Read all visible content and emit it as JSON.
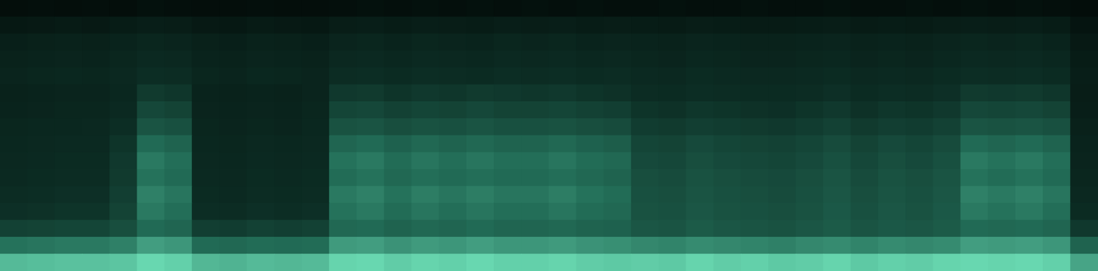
{
  "chart_data": {
    "type": "heatmap",
    "tick_labels": false,
    "zlim": [
      0,
      100
    ],
    "cells": [
      [
        5,
        6,
        5,
        6,
        5,
        7,
        6,
        5,
        5,
        6,
        5,
        5,
        6,
        7,
        6,
        7,
        6,
        7,
        6,
        7,
        6,
        7,
        6,
        6,
        7,
        6,
        6,
        7,
        6,
        6,
        7,
        6,
        6,
        7,
        6,
        7,
        6,
        7,
        6,
        4
      ],
      [
        13,
        14,
        15,
        14,
        16,
        18,
        17,
        14,
        13,
        15,
        14,
        13,
        17,
        18,
        16,
        18,
        17,
        16,
        18,
        17,
        18,
        16,
        17,
        16,
        15,
        17,
        16,
        15,
        15,
        16,
        17,
        15,
        16,
        15,
        17,
        18,
        17,
        18,
        16,
        10
      ],
      [
        19,
        20,
        21,
        20,
        22,
        24,
        23,
        20,
        19,
        21,
        20,
        19,
        23,
        24,
        22,
        24,
        23,
        22,
        24,
        23,
        24,
        22,
        23,
        22,
        21,
        23,
        22,
        21,
        21,
        22,
        23,
        21,
        22,
        21,
        23,
        24,
        23,
        24,
        22,
        14
      ],
      [
        21,
        22,
        23,
        22,
        24,
        27,
        26,
        22,
        21,
        23,
        22,
        21,
        26,
        27,
        25,
        27,
        26,
        25,
        27,
        26,
        27,
        25,
        26,
        24,
        23,
        25,
        24,
        23,
        23,
        24,
        25,
        23,
        24,
        23,
        25,
        27,
        26,
        27,
        25,
        16
      ],
      [
        23,
        24,
        25,
        24,
        26,
        30,
        29,
        24,
        23,
        25,
        24,
        23,
        29,
        30,
        28,
        30,
        29,
        28,
        30,
        29,
        30,
        28,
        29,
        27,
        26,
        28,
        27,
        26,
        26,
        27,
        28,
        26,
        27,
        26,
        28,
        30,
        29,
        30,
        28,
        18
      ],
      [
        21,
        22,
        23,
        23,
        25,
        36,
        34,
        22,
        21,
        22,
        21,
        23,
        35,
        36,
        33,
        35,
        34,
        36,
        35,
        34,
        35,
        33,
        32,
        29,
        28,
        30,
        29,
        28,
        28,
        29,
        31,
        28,
        30,
        29,
        31,
        36,
        35,
        36,
        34,
        17
      ],
      [
        22,
        23,
        24,
        24,
        27,
        42,
        40,
        23,
        22,
        23,
        22,
        24,
        41,
        42,
        39,
        41,
        40,
        42,
        40,
        40,
        41,
        39,
        38,
        33,
        32,
        34,
        33,
        32,
        31,
        33,
        35,
        32,
        34,
        33,
        35,
        42,
        41,
        42,
        40,
        18
      ],
      [
        24,
        25,
        25,
        26,
        30,
        48,
        46,
        24,
        23,
        24,
        23,
        25,
        47,
        48,
        45,
        47,
        46,
        48,
        46,
        46,
        47,
        45,
        44,
        37,
        36,
        38,
        37,
        36,
        35,
        37,
        39,
        36,
        38,
        37,
        39,
        48,
        47,
        48,
        46,
        20
      ],
      [
        25,
        26,
        27,
        27,
        33,
        58,
        55,
        25,
        24,
        26,
        25,
        26,
        56,
        58,
        54,
        57,
        55,
        57,
        55,
        55,
        57,
        54,
        52,
        41,
        40,
        43,
        41,
        40,
        39,
        41,
        44,
        40,
        43,
        41,
        44,
        58,
        56,
        58,
        55,
        22
      ],
      [
        26,
        27,
        28,
        28,
        35,
        63,
        60,
        26,
        25,
        27,
        26,
        27,
        61,
        63,
        59,
        62,
        60,
        62,
        60,
        60,
        62,
        59,
        57,
        43,
        42,
        45,
        43,
        42,
        41,
        43,
        46,
        42,
        45,
        43,
        46,
        63,
        61,
        63,
        60,
        23
      ],
      [
        27,
        28,
        29,
        29,
        36,
        61,
        58,
        27,
        26,
        28,
        27,
        28,
        59,
        61,
        57,
        60,
        58,
        60,
        58,
        58,
        60,
        57,
        55,
        45,
        44,
        47,
        45,
        44,
        43,
        45,
        48,
        44,
        47,
        45,
        48,
        61,
        59,
        61,
        58,
        24
      ],
      [
        29,
        30,
        31,
        31,
        38,
        65,
        62,
        28,
        27,
        29,
        28,
        29,
        63,
        65,
        61,
        64,
        62,
        64,
        62,
        62,
        64,
        61,
        59,
        46,
        45,
        48,
        46,
        45,
        44,
        46,
        49,
        45,
        48,
        46,
        49,
        65,
        63,
        65,
        62,
        26
      ],
      [
        31,
        32,
        33,
        33,
        40,
        63,
        60,
        30,
        29,
        31,
        30,
        31,
        61,
        63,
        59,
        62,
        60,
        62,
        60,
        60,
        62,
        59,
        57,
        47,
        46,
        49,
        47,
        46,
        45,
        47,
        50,
        46,
        49,
        47,
        50,
        63,
        61,
        63,
        60,
        28
      ],
      [
        39,
        40,
        41,
        41,
        45,
        58,
        56,
        38,
        37,
        39,
        38,
        39,
        57,
        58,
        55,
        57,
        56,
        58,
        56,
        56,
        57,
        55,
        54,
        49,
        48,
        51,
        49,
        48,
        47,
        49,
        51,
        48,
        50,
        49,
        51,
        58,
        57,
        58,
        56,
        35
      ],
      [
        61,
        62,
        63,
        63,
        65,
        73,
        71,
        58,
        57,
        59,
        58,
        59,
        72,
        73,
        70,
        72,
        71,
        73,
        71,
        71,
        72,
        70,
        69,
        67,
        66,
        68,
        67,
        66,
        65,
        67,
        68,
        66,
        68,
        67,
        68,
        73,
        72,
        73,
        71,
        55
      ],
      [
        81,
        82,
        83,
        83,
        84,
        89,
        87,
        80,
        79,
        81,
        80,
        81,
        88,
        89,
        86,
        88,
        87,
        89,
        87,
        87,
        88,
        86,
        85,
        86,
        85,
        88,
        86,
        87,
        85,
        86,
        88,
        85,
        87,
        86,
        88,
        89,
        88,
        89,
        87,
        75
      ]
    ]
  }
}
